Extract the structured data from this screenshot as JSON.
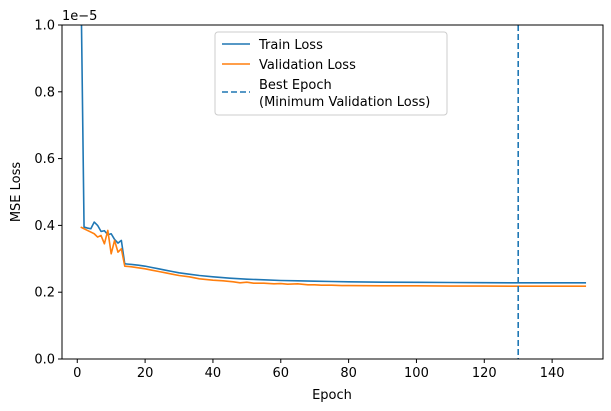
{
  "chart_data": {
    "type": "line",
    "xlabel": "Epoch",
    "ylabel": "MSE Loss",
    "offset_text": "1e−5",
    "xlim": [
      -4.5,
      155
    ],
    "ylim": [
      0.0,
      1.0
    ],
    "xticks": [
      0,
      20,
      40,
      60,
      80,
      100,
      120,
      140
    ],
    "yticks": [
      0.0,
      0.2,
      0.4,
      0.6,
      0.8,
      1.0
    ],
    "xtick_labels": [
      "0",
      "20",
      "40",
      "60",
      "80",
      "100",
      "120",
      "140"
    ],
    "ytick_labels": [
      "0.0",
      "0.2",
      "0.4",
      "0.6",
      "0.8",
      "1.0"
    ],
    "grid": false,
    "legend_placement": "upper center",
    "series": [
      {
        "name": "Train Loss",
        "color": "#1f77b4",
        "points": [
          [
            1,
            1.2
          ],
          [
            2,
            0.395
          ],
          [
            3,
            0.392
          ],
          [
            4,
            0.39
          ],
          [
            5,
            0.41
          ],
          [
            6,
            0.4
          ],
          [
            7,
            0.382
          ],
          [
            8,
            0.384
          ],
          [
            9,
            0.372
          ],
          [
            10,
            0.375
          ],
          [
            11,
            0.358
          ],
          [
            12,
            0.347
          ],
          [
            13,
            0.355
          ],
          [
            14,
            0.285
          ],
          [
            15,
            0.284
          ],
          [
            16,
            0.283
          ],
          [
            18,
            0.281
          ],
          [
            20,
            0.278
          ],
          [
            22,
            0.274
          ],
          [
            24,
            0.27
          ],
          [
            26,
            0.266
          ],
          [
            28,
            0.262
          ],
          [
            30,
            0.258
          ],
          [
            33,
            0.254
          ],
          [
            36,
            0.25
          ],
          [
            40,
            0.246
          ],
          [
            45,
            0.242
          ],
          [
            50,
            0.239
          ],
          [
            55,
            0.237
          ],
          [
            60,
            0.235
          ],
          [
            65,
            0.234
          ],
          [
            70,
            0.233
          ],
          [
            75,
            0.232
          ],
          [
            80,
            0.231
          ],
          [
            90,
            0.23
          ],
          [
            100,
            0.2295
          ],
          [
            110,
            0.229
          ],
          [
            120,
            0.2285
          ],
          [
            130,
            0.228
          ],
          [
            140,
            0.228
          ],
          [
            150,
            0.228
          ]
        ]
      },
      {
        "name": "Validation Loss",
        "color": "#ff7f0e",
        "points": [
          [
            1,
            0.395
          ],
          [
            2,
            0.39
          ],
          [
            3,
            0.385
          ],
          [
            4,
            0.38
          ],
          [
            5,
            0.375
          ],
          [
            6,
            0.365
          ],
          [
            7,
            0.37
          ],
          [
            8,
            0.345
          ],
          [
            9,
            0.385
          ],
          [
            10,
            0.315
          ],
          [
            11,
            0.355
          ],
          [
            12,
            0.32
          ],
          [
            13,
            0.33
          ],
          [
            14,
            0.278
          ],
          [
            15,
            0.277
          ],
          [
            16,
            0.276
          ],
          [
            18,
            0.273
          ],
          [
            20,
            0.27
          ],
          [
            22,
            0.266
          ],
          [
            24,
            0.262
          ],
          [
            26,
            0.258
          ],
          [
            28,
            0.254
          ],
          [
            30,
            0.25
          ],
          [
            33,
            0.246
          ],
          [
            36,
            0.24
          ],
          [
            40,
            0.236
          ],
          [
            43,
            0.234
          ],
          [
            46,
            0.231
          ],
          [
            48,
            0.228
          ],
          [
            50,
            0.23
          ],
          [
            52,
            0.227
          ],
          [
            55,
            0.227
          ],
          [
            58,
            0.225
          ],
          [
            60,
            0.226
          ],
          [
            62,
            0.224
          ],
          [
            65,
            0.225
          ],
          [
            68,
            0.222
          ],
          [
            70,
            0.222
          ],
          [
            72,
            0.221
          ],
          [
            75,
            0.221
          ],
          [
            78,
            0.22
          ],
          [
            80,
            0.22
          ],
          [
            90,
            0.219
          ],
          [
            100,
            0.219
          ],
          [
            110,
            0.2185
          ],
          [
            120,
            0.2185
          ],
          [
            130,
            0.218
          ],
          [
            140,
            0.218
          ],
          [
            150,
            0.218
          ]
        ]
      }
    ],
    "vlines": [
      {
        "name": "Best Epoch\n(Minimum Validation Loss)",
        "x": 130,
        "color": "#1f77b4",
        "style": "dashed"
      }
    ],
    "legend": [
      {
        "label": "Train Loss",
        "color": "#1f77b4",
        "style": "solid"
      },
      {
        "label": "Validation Loss",
        "color": "#ff7f0e",
        "style": "solid"
      },
      {
        "label_lines": [
          "Best Epoch",
          "(Minimum Validation Loss)"
        ],
        "color": "#1f77b4",
        "style": "dashed"
      }
    ]
  }
}
